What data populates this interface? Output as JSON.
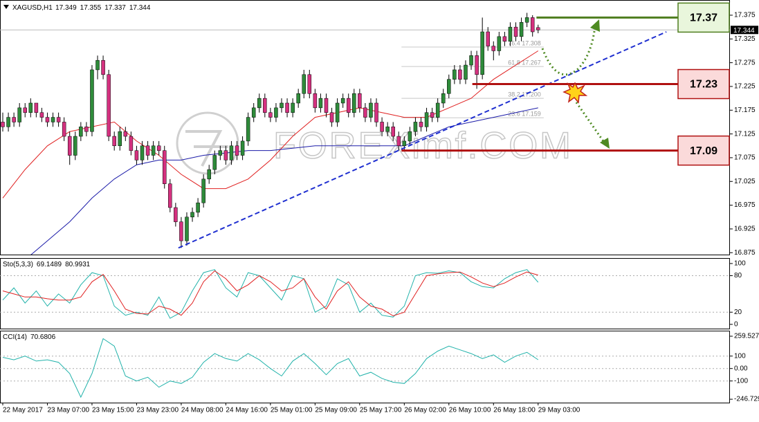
{
  "chart_data": [
    {
      "type": "candlestick",
      "title": "XAGUSD,H1",
      "categories": [
        "22 May 2017",
        null,
        null,
        null,
        null,
        null,
        null,
        null,
        "23 May 07:00",
        null,
        null,
        null,
        null,
        null,
        null,
        null,
        "23 May 15:00",
        null,
        null,
        null,
        null,
        null,
        null,
        null,
        "23 May 23:00",
        null,
        null,
        null,
        null,
        null,
        null,
        null,
        "24 May 08:00",
        null,
        null,
        null,
        null,
        null,
        null,
        null,
        "24 May 16:00",
        null,
        null,
        null,
        null,
        null,
        null,
        null,
        "25 May 01:00",
        null,
        null,
        null,
        null,
        null,
        null,
        null,
        "25 May 09:00",
        null,
        null,
        null,
        null,
        null,
        null,
        null,
        "25 May 17:00",
        null,
        null,
        null,
        null,
        null,
        null,
        null,
        "26 May 02:00",
        null,
        null,
        null,
        null,
        null,
        null,
        null,
        "26 May 10:00",
        null,
        null,
        null,
        null,
        null,
        null,
        null,
        "26 May 18:00",
        null,
        null,
        null,
        null,
        null,
        null,
        null,
        "29 May 03:00"
      ],
      "ohlc": [
        [
          17.15,
          17.17,
          17.13,
          17.14
        ],
        [
          17.14,
          17.17,
          17.13,
          17.16
        ],
        [
          17.16,
          17.17,
          17.14,
          17.15
        ],
        [
          17.15,
          17.19,
          17.14,
          17.18
        ],
        [
          17.18,
          17.19,
          17.16,
          17.17
        ],
        [
          17.17,
          17.2,
          17.16,
          17.19
        ],
        [
          17.19,
          17.19,
          17.16,
          17.17
        ],
        [
          17.17,
          17.18,
          17.15,
          17.16
        ],
        [
          17.16,
          17.17,
          17.14,
          17.15
        ],
        [
          17.15,
          17.17,
          17.14,
          17.16
        ],
        [
          17.16,
          17.17,
          17.14,
          17.15
        ],
        [
          17.15,
          17.16,
          17.11,
          17.12
        ],
        [
          17.12,
          17.13,
          17.06,
          17.08
        ],
        [
          17.08,
          17.13,
          17.07,
          17.12
        ],
        [
          17.12,
          17.15,
          17.11,
          17.14
        ],
        [
          17.14,
          17.15,
          17.12,
          17.13
        ],
        [
          17.13,
          17.27,
          17.12,
          17.26
        ],
        [
          17.26,
          17.29,
          17.24,
          17.28
        ],
        [
          17.28,
          17.29,
          17.24,
          17.25
        ],
        [
          17.25,
          17.26,
          17.11,
          17.12
        ],
        [
          17.12,
          17.13,
          17.09,
          17.1
        ],
        [
          17.1,
          17.14,
          17.09,
          17.13
        ],
        [
          17.13,
          17.14,
          17.11,
          17.12
        ],
        [
          17.12,
          17.13,
          17.08,
          17.09
        ],
        [
          17.09,
          17.1,
          17.06,
          17.07
        ],
        [
          17.07,
          17.11,
          17.06,
          17.1
        ],
        [
          17.1,
          17.11,
          17.07,
          17.08
        ],
        [
          17.08,
          17.11,
          17.07,
          17.1
        ],
        [
          17.1,
          17.11,
          17.08,
          17.09
        ],
        [
          17.09,
          17.1,
          17.01,
          17.02
        ],
        [
          17.02,
          17.03,
          16.96,
          16.97
        ],
        [
          16.97,
          16.98,
          16.93,
          16.94
        ],
        [
          16.94,
          16.95,
          16.885,
          16.9
        ],
        [
          16.9,
          16.96,
          16.89,
          16.95
        ],
        [
          16.95,
          16.97,
          16.94,
          16.96
        ],
        [
          16.96,
          16.99,
          16.95,
          16.98
        ],
        [
          16.98,
          17.04,
          16.97,
          17.03
        ],
        [
          17.03,
          17.06,
          17.02,
          17.05
        ],
        [
          17.05,
          17.09,
          17.04,
          17.08
        ],
        [
          17.08,
          17.1,
          17.07,
          17.09
        ],
        [
          17.09,
          17.1,
          17.06,
          17.07
        ],
        [
          17.07,
          17.11,
          17.06,
          17.1
        ],
        [
          17.1,
          17.11,
          17.07,
          17.08
        ],
        [
          17.08,
          17.12,
          17.07,
          17.11
        ],
        [
          17.11,
          17.17,
          17.1,
          17.16
        ],
        [
          17.16,
          17.19,
          17.15,
          17.18
        ],
        [
          17.18,
          17.21,
          17.17,
          17.2
        ],
        [
          17.2,
          17.21,
          17.16,
          17.17
        ],
        [
          17.17,
          17.18,
          17.15,
          17.16
        ],
        [
          17.16,
          17.19,
          17.15,
          17.18
        ],
        [
          17.18,
          17.2,
          17.17,
          17.19
        ],
        [
          17.19,
          17.2,
          17.16,
          17.17
        ],
        [
          17.17,
          17.2,
          17.16,
          17.19
        ],
        [
          17.19,
          17.22,
          17.18,
          17.21
        ],
        [
          17.21,
          17.26,
          17.2,
          17.25
        ],
        [
          17.25,
          17.26,
          17.2,
          17.21
        ],
        [
          17.21,
          17.22,
          17.17,
          17.18
        ],
        [
          17.18,
          17.21,
          17.17,
          17.2
        ],
        [
          17.2,
          17.21,
          17.16,
          17.17
        ],
        [
          17.17,
          17.18,
          17.14,
          17.15
        ],
        [
          17.15,
          17.2,
          17.14,
          17.19
        ],
        [
          17.19,
          17.21,
          17.18,
          17.2
        ],
        [
          17.2,
          17.21,
          17.16,
          17.17
        ],
        [
          17.17,
          17.22,
          17.16,
          17.21
        ],
        [
          17.21,
          17.22,
          17.17,
          17.18
        ],
        [
          17.18,
          17.19,
          17.15,
          17.16
        ],
        [
          17.16,
          17.2,
          17.15,
          17.19
        ],
        [
          17.19,
          17.2,
          17.14,
          17.15
        ],
        [
          17.15,
          17.16,
          17.12,
          17.13
        ],
        [
          17.13,
          17.15,
          17.12,
          17.14
        ],
        [
          17.14,
          17.15,
          17.11,
          17.12
        ],
        [
          17.12,
          17.13,
          17.09,
          17.1
        ],
        [
          17.1,
          17.12,
          17.09,
          17.11
        ],
        [
          17.11,
          17.14,
          17.1,
          17.13
        ],
        [
          17.13,
          17.16,
          17.12,
          17.15
        ],
        [
          17.15,
          17.16,
          17.13,
          17.14
        ],
        [
          17.14,
          17.18,
          17.13,
          17.17
        ],
        [
          17.17,
          17.18,
          17.15,
          17.16
        ],
        [
          17.16,
          17.2,
          17.15,
          17.19
        ],
        [
          17.19,
          17.22,
          17.18,
          17.21
        ],
        [
          17.21,
          17.25,
          17.2,
          17.24
        ],
        [
          17.24,
          17.27,
          17.23,
          17.26
        ],
        [
          17.26,
          17.27,
          17.23,
          17.24
        ],
        [
          17.24,
          17.28,
          17.23,
          17.27
        ],
        [
          17.27,
          17.3,
          17.26,
          17.29
        ],
        [
          17.29,
          17.3,
          17.22,
          17.25
        ],
        [
          17.25,
          17.37,
          17.24,
          17.34
        ],
        [
          17.34,
          17.35,
          17.3,
          17.31
        ],
        [
          17.31,
          17.32,
          17.28,
          17.3
        ],
        [
          17.3,
          17.34,
          17.29,
          17.33
        ],
        [
          17.33,
          17.34,
          17.31,
          17.32
        ],
        [
          17.32,
          17.36,
          17.31,
          17.35
        ],
        [
          17.35,
          17.36,
          17.32,
          17.33
        ],
        [
          17.33,
          17.37,
          17.32,
          17.36
        ],
        [
          17.36,
          17.38,
          17.35,
          17.37
        ],
        [
          17.37,
          17.375,
          17.33,
          17.34
        ],
        [
          17.349,
          17.355,
          17.337,
          17.344
        ]
      ],
      "up_color": "#2e8b3a",
      "down_color": "#d4317f",
      "ylim": [
        16.871,
        17.407
      ],
      "yticks": [
        17.375,
        17.325,
        17.275,
        17.225,
        17.175,
        17.125,
        17.075,
        17.025,
        16.975,
        16.925,
        16.875
      ],
      "moving_averages": [
        {
          "color": "#e02020",
          "x": [
            0,
            4,
            8,
            12,
            16,
            20,
            24,
            28,
            32,
            36,
            40,
            44,
            48,
            52,
            56,
            60,
            64,
            68,
            72,
            76,
            80,
            84,
            88,
            92,
            96
          ],
          "values": [
            16.99,
            17.05,
            17.1,
            17.13,
            17.14,
            17.15,
            17.11,
            17.08,
            17.04,
            17.01,
            17.01,
            17.03,
            17.07,
            17.12,
            17.16,
            17.17,
            17.18,
            17.17,
            17.16,
            17.16,
            17.18,
            17.2,
            17.24,
            17.27,
            17.3
          ]
        },
        {
          "color": "#1a1aa8",
          "x": [
            4,
            8,
            12,
            16,
            20,
            24,
            28,
            32,
            36,
            40,
            44,
            48,
            52,
            56,
            60,
            64,
            68,
            72,
            76,
            80,
            84,
            88,
            92,
            96
          ],
          "values": [
            16.86,
            16.9,
            16.94,
            16.99,
            17.03,
            17.06,
            17.07,
            17.07,
            17.08,
            17.085,
            17.09,
            17.09,
            17.095,
            17.1,
            17.1,
            17.1,
            17.1,
            17.1,
            17.12,
            17.14,
            17.15,
            17.16,
            17.17,
            17.18
          ]
        }
      ],
      "trendline": {
        "color": "#1f2fd0",
        "x": [
          31.5,
          119
        ],
        "y": [
          16.885,
          17.34
        ]
      },
      "key_levels": [
        {
          "value": 17.37,
          "x": 95.7,
          "color": "#4e7d1e",
          "box": "#e9f6dc"
        },
        {
          "value": 17.23,
          "x": 84.2,
          "color": "#b01010",
          "box": "#fbdada"
        },
        {
          "value": 17.09,
          "x": 71.5,
          "color": "#b01010",
          "box": "#fbdada"
        }
      ],
      "fibonacci": [
        {
          "label": "76.4 17.308",
          "value": 17.308
        },
        {
          "label": "61.8 17.267",
          "value": 17.267
        },
        {
          "label": "38.2 17.200",
          "value": 17.2
        },
        {
          "label": "23.6 17.159",
          "value": 17.159
        }
      ],
      "watermark": "FOREXimf.COM"
    },
    {
      "type": "line",
      "title": "Sto(5,3,3)",
      "x": [
        0,
        2,
        4,
        6,
        8,
        10,
        12,
        14,
        16,
        18,
        20,
        22,
        24,
        26,
        28,
        30,
        32,
        34,
        36,
        38,
        40,
        42,
        44,
        46,
        48,
        50,
        52,
        54,
        56,
        58,
        60,
        62,
        64,
        66,
        68,
        70,
        72,
        74,
        76,
        78,
        80,
        82,
        84,
        86,
        88,
        90,
        92,
        94,
        96
      ],
      "series": [
        {
          "color": "#20b2aa",
          "values": [
            40,
            60,
            35,
            55,
            30,
            50,
            35,
            65,
            85,
            80,
            30,
            15,
            20,
            15,
            45,
            10,
            20,
            55,
            85,
            90,
            60,
            45,
            85,
            80,
            60,
            40,
            80,
            75,
            20,
            30,
            75,
            65,
            20,
            35,
            15,
            12,
            30,
            80,
            85,
            84,
            88,
            85,
            70,
            62,
            60,
            75,
            85,
            90,
            69.1489
          ]
        },
        {
          "color": "#e02020",
          "values": [
            55,
            50,
            45,
            45,
            42,
            40,
            40,
            45,
            70,
            82,
            55,
            25,
            18,
            17,
            30,
            25,
            15,
            35,
            70,
            88,
            75,
            55,
            65,
            80,
            70,
            55,
            60,
            75,
            45,
            25,
            55,
            70,
            45,
            30,
            25,
            14,
            20,
            50,
            80,
            83,
            85,
            86,
            78,
            68,
            62,
            68,
            78,
            86,
            80.9931
          ]
        }
      ],
      "ylim": [
        -7,
        109
      ],
      "yticks": [
        100,
        80,
        20,
        0
      ],
      "levels": [
        80,
        20
      ]
    },
    {
      "type": "line",
      "title": "CCI(14)",
      "x": [
        0,
        2,
        4,
        6,
        8,
        10,
        12,
        14,
        16,
        18,
        20,
        22,
        24,
        26,
        28,
        30,
        32,
        34,
        36,
        38,
        40,
        42,
        44,
        46,
        48,
        50,
        52,
        54,
        56,
        58,
        60,
        62,
        64,
        66,
        68,
        70,
        72,
        74,
        76,
        78,
        80,
        82,
        84,
        86,
        88,
        90,
        92,
        94,
        96
      ],
      "series": [
        {
          "color": "#20b2aa",
          "values": [
            90,
            70,
            100,
            60,
            70,
            50,
            -40,
            -230,
            -40,
            240,
            180,
            -60,
            -100,
            -70,
            -150,
            -100,
            -120,
            -70,
            50,
            120,
            80,
            60,
            120,
            70,
            0,
            -60,
            60,
            120,
            40,
            -50,
            40,
            80,
            -60,
            -30,
            -80,
            -110,
            -120,
            -40,
            80,
            140,
            180,
            150,
            120,
            80,
            110,
            50,
            100,
            130,
            70.6806
          ]
        }
      ],
      "ylim": [
        -274,
        304
      ],
      "yticks": [
        259.5271,
        100,
        {
          "value": 0,
          "label": "0.00"
        },
        -100,
        -246.729
      ],
      "levels": [
        100,
        0,
        -100
      ]
    }
  ]
}
